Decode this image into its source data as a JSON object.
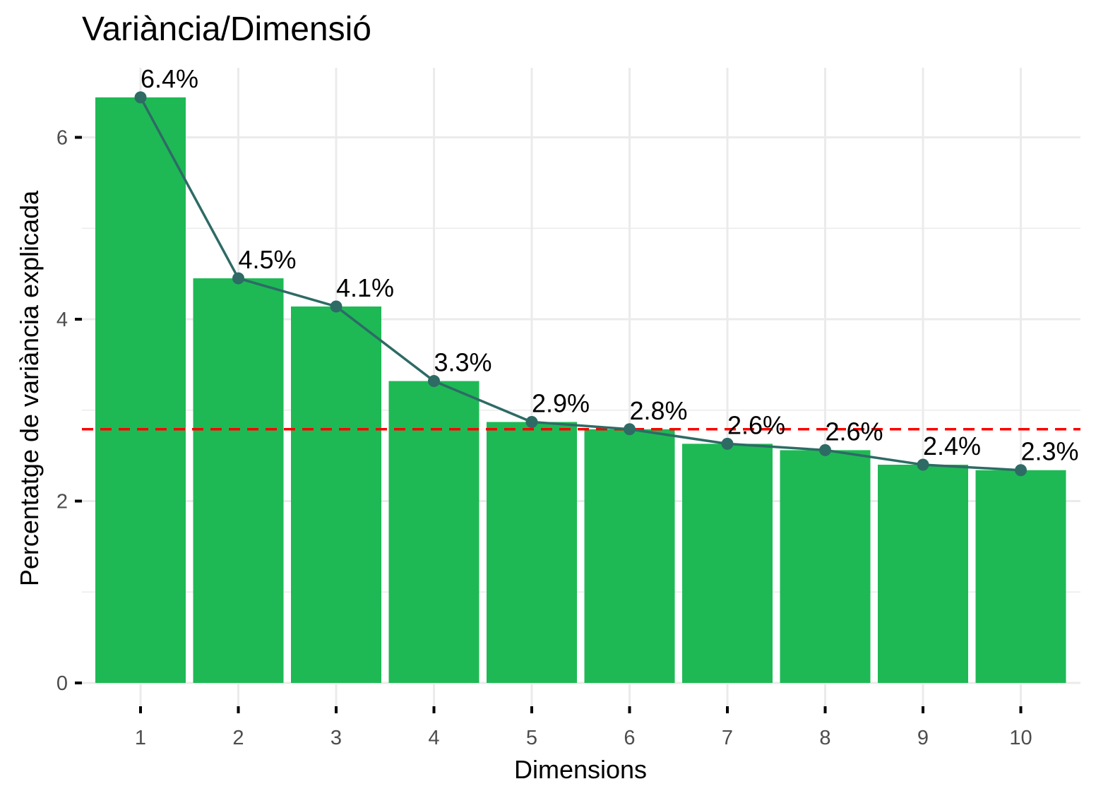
{
  "chart_data": {
    "type": "bar",
    "title": "Variància/Dimensió",
    "xlabel": "Dimensions",
    "ylabel": "Percentatge de variància explicada",
    "categories": [
      "1",
      "2",
      "3",
      "4",
      "5",
      "6",
      "7",
      "8",
      "9",
      "10"
    ],
    "values": [
      6.44,
      4.45,
      4.14,
      3.32,
      2.87,
      2.79,
      2.63,
      2.56,
      2.4,
      2.34
    ],
    "data_labels": [
      "6.4%",
      "4.5%",
      "4.1%",
      "3.3%",
      "2.9%",
      "2.8%",
      "2.6%",
      "2.6%",
      "2.4%",
      "2.3%"
    ],
    "yticks": [
      0,
      2,
      4,
      6
    ],
    "ylim": [
      0,
      6.8
    ],
    "reference_line": 2.79,
    "grid": true,
    "legend": "none",
    "colors": {
      "bar": "#1EB955",
      "line": "#2E6B65",
      "point": "#2E6B65",
      "reference": "#FF0000",
      "grid": "#EBEBEB"
    }
  }
}
